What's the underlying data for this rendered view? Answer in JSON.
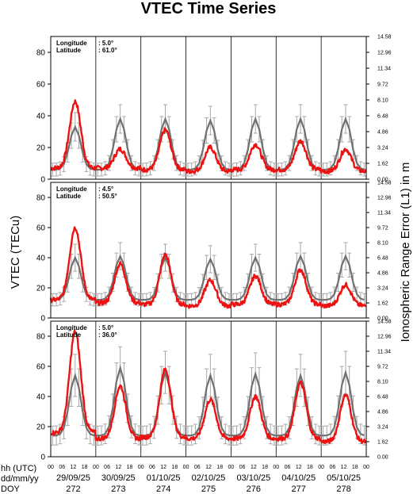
{
  "title": "VTEC Time Series",
  "colors": {
    "observed": "#ee1111",
    "model_mean": "#707070",
    "model_band": "#a8a8a8",
    "axes": "#000000"
  },
  "chart_data": {
    "type": "line",
    "xlabel_rows": [
      "hh (UTC)",
      "dd/mm/yy",
      "DOY"
    ],
    "hour_ticks": [
      "00",
      "06",
      "12",
      "18"
    ],
    "dates": [
      "29/09/25",
      "30/09/25",
      "01/10/25",
      "02/10/25",
      "03/10/25",
      "04/10/25",
      "05/10/25"
    ],
    "doy": [
      "272",
      "273",
      "274",
      "275",
      "276",
      "277",
      "278"
    ],
    "ylabel": "VTEC (TECu)",
    "y2label": "Ionospheric Range Error (L1) in m",
    "ylim": [
      0,
      90
    ],
    "yticks": [
      "0",
      "20",
      "40",
      "60",
      "80"
    ],
    "y2ticks": [
      "0.00",
      "1.62",
      "3.24",
      "4.86",
      "6.48",
      "8.10",
      "9.72",
      "11.34",
      "12.96",
      "14.58"
    ],
    "grid": "vertical lines at 00 UTC each day",
    "panels": [
      {
        "longitude_label": "Longitude",
        "longitude": "5.0°",
        "latitude_label": "Latitude",
        "latitude": "61.0°",
        "observed_daily_peak": [
          49,
          19,
          31,
          20,
          22,
          24,
          19
        ],
        "observed_daily_min": [
          7,
          7,
          6,
          5,
          6,
          6,
          5
        ],
        "model_daily_peak": [
          33,
          38,
          38,
          37,
          38,
          38,
          38
        ],
        "model_daily_min": [
          6,
          6,
          6,
          6,
          6,
          6,
          6
        ],
        "model_spread": 9
      },
      {
        "longitude_label": "Longitude",
        "longitude": "4.5°",
        "latitude_label": "Latitude",
        "latitude": "50.5°",
        "observed_daily_peak": [
          60,
          36,
          42,
          25,
          28,
          32,
          22
        ],
        "observed_daily_min": [
          12,
          10,
          9,
          8,
          9,
          9,
          8
        ],
        "model_daily_peak": [
          40,
          41,
          40,
          39,
          40,
          41,
          41
        ],
        "model_daily_min": [
          12,
          12,
          12,
          12,
          12,
          12,
          12
        ],
        "model_spread": 9
      },
      {
        "longitude_label": "Longitude",
        "longitude": "5.0°",
        "latitude_label": "Latitude",
        "latitude": "36.0°",
        "observed_daily_peak": [
          83,
          47,
          58,
          38,
          40,
          49,
          41
        ],
        "observed_daily_min": [
          16,
          12,
          13,
          12,
          12,
          12,
          10
        ],
        "model_daily_peak": [
          54,
          59,
          56,
          54,
          55,
          54,
          56
        ],
        "model_daily_min": [
          14,
          14,
          14,
          14,
          14,
          14,
          14
        ],
        "model_spread": 14
      }
    ]
  }
}
